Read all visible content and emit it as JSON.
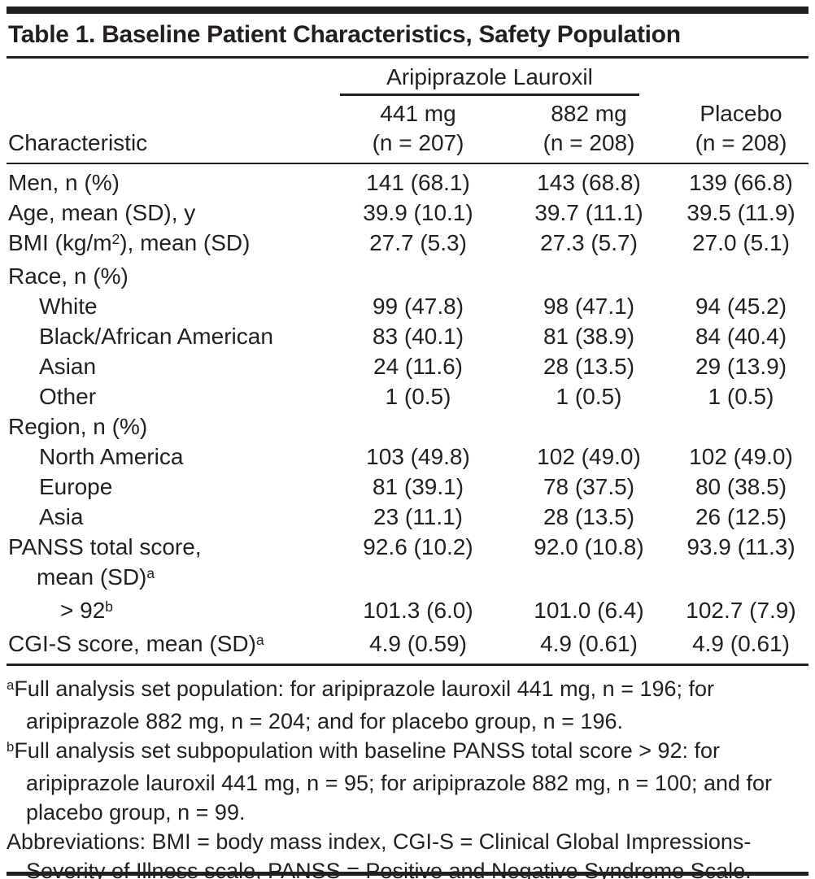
{
  "title": "Table 1. Baseline Patient Characteristics, Safety Population",
  "colors": {
    "text": "#231f20",
    "background": "#ffffff",
    "rules": "#231f20"
  },
  "table": {
    "spanner": "Aripiprazole Lauroxil",
    "col_characteristic": "Characteristic",
    "columns": [
      {
        "line1": "441 mg",
        "line2": "(n = 207)"
      },
      {
        "line1": "882 mg",
        "line2": "(n = 208)"
      },
      {
        "line1": "Placebo",
        "line2": "(n = 208)"
      }
    ],
    "rows": [
      {
        "indent": 0,
        "lines": [
          [
            [
              "t",
              "Men, n (%)"
            ]
          ]
        ],
        "c1": "141 (68.1)",
        "c2": "143 (68.8)",
        "c3": "139 (66.8)"
      },
      {
        "indent": 0,
        "lines": [
          [
            [
              "t",
              "Age, mean (SD), y"
            ]
          ]
        ],
        "c1": "39.9 (10.1)",
        "c2": "39.7 (11.1)",
        "c3": "39.5 (11.9)"
      },
      {
        "indent": 0,
        "lines": [
          [
            [
              "t",
              "BMI (kg/m"
            ],
            [
              "s",
              "2"
            ],
            [
              "t",
              "), mean (SD)"
            ]
          ]
        ],
        "c1": "27.7 (5.3)",
        "c2": "27.3 (5.7)",
        "c3": "27.0 (5.1)"
      },
      {
        "indent": 0,
        "lines": [
          [
            [
              "t",
              "Race, n (%)"
            ]
          ]
        ],
        "c1": "",
        "c2": "",
        "c3": ""
      },
      {
        "indent": 1,
        "lines": [
          [
            [
              "t",
              "White"
            ]
          ]
        ],
        "c1": "99 (47.8)",
        "c2": "98 (47.1)",
        "c3": "94 (45.2)"
      },
      {
        "indent": 1,
        "lines": [
          [
            [
              "t",
              "Black/African American"
            ]
          ]
        ],
        "c1": "83 (40.1)",
        "c2": "81 (38.9)",
        "c3": "84 (40.4)"
      },
      {
        "indent": 1,
        "lines": [
          [
            [
              "t",
              "Asian"
            ]
          ]
        ],
        "c1": "24 (11.6)",
        "c2": "28 (13.5)",
        "c3": "29 (13.9)"
      },
      {
        "indent": 1,
        "lines": [
          [
            [
              "t",
              "Other"
            ]
          ]
        ],
        "c1": "1 (0.5)",
        "c2": "1 (0.5)",
        "c3": "1 (0.5)"
      },
      {
        "indent": 0,
        "lines": [
          [
            [
              "t",
              "Region, n (%)"
            ]
          ]
        ],
        "c1": "",
        "c2": "",
        "c3": ""
      },
      {
        "indent": 1,
        "lines": [
          [
            [
              "t",
              "North America"
            ]
          ]
        ],
        "c1": "103 (49.8)",
        "c2": "102 (49.0)",
        "c3": "102 (49.0)"
      },
      {
        "indent": 1,
        "lines": [
          [
            [
              "t",
              "Europe"
            ]
          ]
        ],
        "c1": "81 (39.1)",
        "c2": "78 (37.5)",
        "c3": "80 (38.5)"
      },
      {
        "indent": 1,
        "lines": [
          [
            [
              "t",
              "Asia"
            ]
          ]
        ],
        "c1": "23 (11.1)",
        "c2": "28 (13.5)",
        "c3": "26 (12.5)"
      },
      {
        "indent": 0,
        "lines": [
          [
            [
              "t",
              "PANSS total score,"
            ]
          ],
          [
            [
              "t",
              "mean (SD)"
            ],
            [
              "s",
              "a"
            ]
          ]
        ],
        "c1": "92.6 (10.2)",
        "c2": "92.0 (10.8)",
        "c3": "93.9 (11.3)"
      },
      {
        "indent": 2,
        "lines": [
          [
            [
              "t",
              "> 92"
            ],
            [
              "s",
              "b"
            ]
          ]
        ],
        "c1": "101.3 (6.0)",
        "c2": "101.0 (6.4)",
        "c3": "102.7 (7.9)"
      },
      {
        "indent": 0,
        "lines": [
          [
            [
              "t",
              "CGI-S score, mean (SD)"
            ],
            [
              "s",
              "a"
            ]
          ]
        ],
        "c1": "4.9 (0.59)",
        "c2": "4.9 (0.61)",
        "c3": "4.9 (0.61)"
      }
    ]
  },
  "footnotes": [
    {
      "marker": "a",
      "text": "Full analysis set population: for aripiprazole lauroxil 441 mg, n = 196; for aripiprazole 882 mg, n = 204; and for placebo group, n = 196."
    },
    {
      "marker": "b",
      "text": "Full analysis set subpopulation with baseline PANSS total score > 92: for aripiprazole lauroxil 441 mg, n = 95; for aripiprazole 882 mg, n = 100; and for placebo group, n = 99."
    },
    {
      "marker": "",
      "text": "Abbreviations: BMI = body mass index, CGI-S = Clinical Global Impressions-Severity of Illness scale, PANSS = Positive and Negative Syndrome Scale."
    }
  ]
}
